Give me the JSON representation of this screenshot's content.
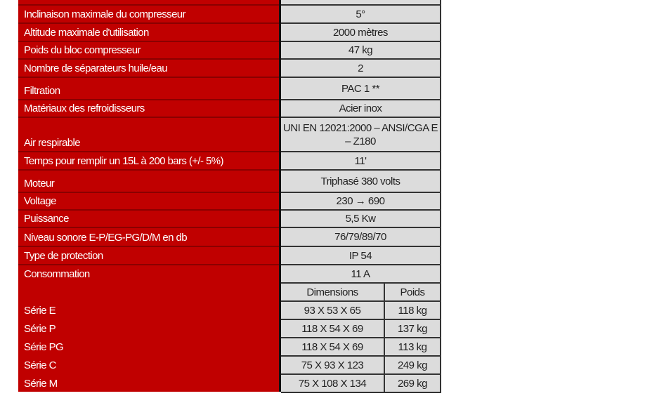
{
  "colors": {
    "label_bg": "#c00000",
    "value_bg": "#dcdcdc"
  },
  "rows": [
    {
      "label": "",
      "value": ""
    },
    {
      "label": "Inclinaison maximale du compresseur",
      "value": "5°"
    },
    {
      "label": "Altitude maximale d'utilisation",
      "value": "2000 mètres"
    },
    {
      "label": "Poids du bloc compresseur",
      "value": "47 kg"
    },
    {
      "label": "Nombre de séparateurs huile/eau",
      "value": "2"
    },
    {
      "label": "Filtration",
      "value": "PAC 1 **"
    },
    {
      "label": "Matériaux des refroidisseurs",
      "value": "Acier inox"
    },
    {
      "label": "Air respirable",
      "value": "UNI EN 12021:2000 – ANSI/CGA E – Z180"
    },
    {
      "label": "Temps pour remplir un 15L à 200 bars (+/- 5%)",
      "value": "11'"
    },
    {
      "label": "Moteur",
      "value": "Triphasé 380 volts"
    },
    {
      "label": "Voltage",
      "value": "230 → 690"
    },
    {
      "label": "Puissance",
      "value": "5,5 Kw"
    },
    {
      "label": "Niveau sonore E-P/EG-PG/D/M en db",
      "value": "76/79/89/70"
    },
    {
      "label": "Type de protection",
      "value": "IP 54"
    },
    {
      "label": "Consommation",
      "value": "11 A"
    }
  ],
  "series_header": {
    "dimensions": "Dimensions",
    "weight": "Poids"
  },
  "series": [
    {
      "label": "Série E",
      "dimensions": "93 X 53 X 65",
      "weight": "118 kg"
    },
    {
      "label": "Série P",
      "dimensions": "118 X 54 X 69",
      "weight": "137 kg"
    },
    {
      "label": "Série PG",
      "dimensions": "118 X 54 X 69",
      "weight": "113 kg"
    },
    {
      "label": "Série C",
      "dimensions": "75 X 93 X 123",
      "weight": "249 kg"
    },
    {
      "label": "Série M",
      "dimensions": "75 X 108 X 134",
      "weight": "269 kg"
    }
  ]
}
